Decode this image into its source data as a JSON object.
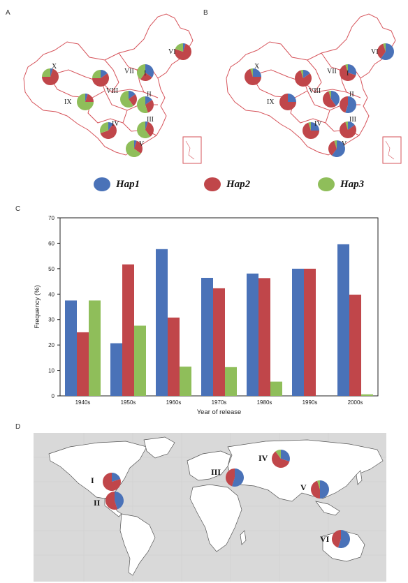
{
  "panels": {
    "a": "A",
    "b": "B",
    "c": "C",
    "d": "D"
  },
  "colors": {
    "hap1": "#4a72b8",
    "hap2": "#c0464a",
    "hap3": "#8fbe5a"
  },
  "legend": [
    {
      "label": "Hap1",
      "color": "#4a72b8"
    },
    {
      "label": "Hap2",
      "color": "#c0464a"
    },
    {
      "label": "Hap3",
      "color": "#8fbe5a"
    }
  ],
  "map_a": {
    "regions": [
      {
        "label": "X",
        "values": [
          0.05,
          0.7,
          0.25
        ]
      },
      {
        "label": "VII",
        "values": [
          0.15,
          0.6,
          0.25
        ]
      },
      {
        "label": "VI",
        "values": [
          0.05,
          0.75,
          0.2
        ]
      },
      {
        "label": "VIII",
        "values": [
          0.15,
          0.25,
          0.6
        ]
      },
      {
        "label": "IX",
        "values": [
          0.05,
          0.2,
          0.75
        ]
      },
      {
        "label": "II",
        "values": [
          0.15,
          0.3,
          0.55
        ]
      },
      {
        "label": "I",
        "values": [
          0.35,
          0.25,
          0.4
        ]
      },
      {
        "label": "IV",
        "values": [
          0.1,
          0.6,
          0.3
        ]
      },
      {
        "label": "III",
        "values": [
          0.05,
          0.35,
          0.6
        ]
      },
      {
        "label": "V",
        "values": [
          0.05,
          0.3,
          0.65
        ]
      }
    ]
  },
  "map_b": {
    "regions": [
      {
        "label": "X",
        "values": [
          0.25,
          0.7,
          0.05
        ]
      },
      {
        "label": "VII",
        "values": [
          0.15,
          0.8,
          0.05
        ]
      },
      {
        "label": "VI",
        "values": [
          0.6,
          0.35,
          0.05
        ]
      },
      {
        "label": "VIII",
        "values": [
          0.4,
          0.55,
          0.05
        ]
      },
      {
        "label": "IX",
        "values": [
          0.25,
          0.75,
          0.0
        ]
      },
      {
        "label": "II",
        "values": [
          0.55,
          0.45,
          0.0
        ]
      },
      {
        "label": "I",
        "values": [
          0.3,
          0.65,
          0.05
        ]
      },
      {
        "label": "IV",
        "values": [
          0.25,
          0.7,
          0.05
        ]
      },
      {
        "label": "III",
        "values": [
          0.15,
          0.8,
          0.05
        ]
      },
      {
        "label": "V",
        "values": [
          0.6,
          0.35,
          0.05
        ]
      }
    ]
  },
  "world": {
    "regions": [
      {
        "label": "I",
        "values": [
          0.2,
          0.8,
          0.0
        ]
      },
      {
        "label": "II",
        "values": [
          0.45,
          0.55,
          0.0
        ]
      },
      {
        "label": "III",
        "values": [
          0.55,
          0.45,
          0.0
        ]
      },
      {
        "label": "IV",
        "values": [
          0.3,
          0.6,
          0.1
        ]
      },
      {
        "label": "V",
        "values": [
          0.5,
          0.45,
          0.05
        ]
      },
      {
        "label": "VI",
        "values": [
          0.55,
          0.45,
          0.0
        ]
      }
    ]
  },
  "chart_data": {
    "type": "bar",
    "categories": [
      "1940s",
      "1950s",
      "1960s",
      "1970s",
      "1980s",
      "1990s",
      "2000s"
    ],
    "series": [
      {
        "color": "#4a72b8",
        "values": [
          37.5,
          20.7,
          57.7,
          46.4,
          48.1,
          50.0,
          59.6
        ]
      },
      {
        "color": "#c0464a",
        "values": [
          25.0,
          51.7,
          30.8,
          42.3,
          46.3,
          50.0,
          39.8
        ]
      },
      {
        "color": "#8fbe5a",
        "values": [
          37.5,
          27.6,
          11.5,
          11.3,
          5.6,
          0.0,
          0.6
        ]
      }
    ],
    "xlabel": "Year of release",
    "ylabel": "Frequency (%)",
    "ylim": [
      0,
      70
    ],
    "yticks": [
      "0",
      "10",
      "20",
      "30",
      "40",
      "50",
      "60",
      "70"
    ],
    "grid": false
  }
}
